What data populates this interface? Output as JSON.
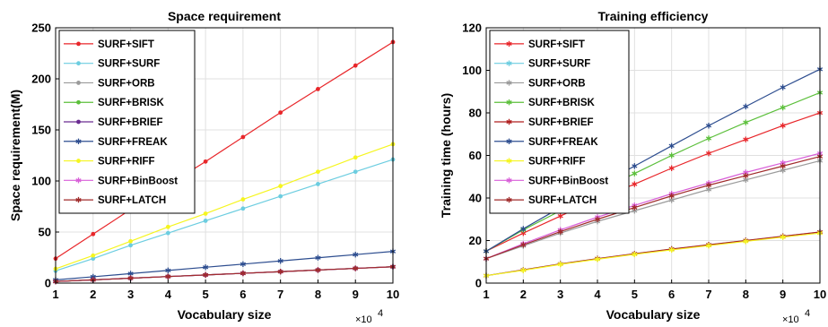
{
  "chart_data": [
    {
      "type": "line",
      "title": "Space requirement",
      "xlabel": "Vocabulary size",
      "ylabel": "Space requirement(M)",
      "x_multiplier_base": "×10",
      "x_multiplier_exp": "4",
      "x": [
        1,
        2,
        3,
        4,
        5,
        6,
        7,
        8,
        9,
        10
      ],
      "xlim": [
        1,
        10
      ],
      "ylim": [
        0,
        250
      ],
      "yticks": [
        0,
        50,
        100,
        150,
        200,
        250
      ],
      "grid": true,
      "legend": "top-left",
      "series": [
        {
          "name": "SURF+SIFT",
          "color": "#e8262a",
          "marker": "dot",
          "values": [
            24,
            48,
            72,
            96,
            119,
            143,
            167,
            190,
            213,
            236
          ]
        },
        {
          "name": "SURF+SURF",
          "color": "#6ccde0",
          "marker": "dot",
          "values": [
            12,
            24,
            37,
            49,
            61,
            73,
            85,
            97,
            109,
            121
          ]
        },
        {
          "name": "SURF+ORB",
          "color": "#9b9b9b",
          "marker": "dot",
          "values": [
            1.6,
            3.2,
            4.8,
            6.4,
            8,
            9.6,
            11.2,
            12.8,
            14.4,
            16
          ]
        },
        {
          "name": "SURF+BRISK",
          "color": "#5bbf3a",
          "marker": "dot",
          "values": [
            1.6,
            3.2,
            4.8,
            6.4,
            8,
            9.6,
            11.2,
            12.8,
            14.4,
            16
          ]
        },
        {
          "name": "SURF+BRIEF",
          "color": "#6a2c91",
          "marker": "dot",
          "values": [
            1.6,
            3.2,
            4.8,
            6.4,
            8,
            9.6,
            11.2,
            12.8,
            14.4,
            16
          ]
        },
        {
          "name": "SURF+FREAK",
          "color": "#2d4d8f",
          "marker": "star",
          "values": [
            3.2,
            6.2,
            9.3,
            12.4,
            15.5,
            18.6,
            21.7,
            24.8,
            27.9,
            31
          ]
        },
        {
          "name": "SURF+RIFF",
          "color": "#f5f520",
          "marker": "dot",
          "values": [
            14,
            27,
            41,
            55,
            68,
            82,
            95,
            109,
            123,
            136
          ]
        },
        {
          "name": "SURF+BinBoost",
          "color": "#d85ed8",
          "marker": "star",
          "values": [
            1.6,
            3.2,
            4.8,
            6.4,
            8,
            9.6,
            11.2,
            12.8,
            14.4,
            16
          ]
        },
        {
          "name": "SURF+LATCH",
          "color": "#a02b2b",
          "marker": "star",
          "values": [
            1.6,
            3.2,
            4.8,
            6.4,
            8,
            9.6,
            11.2,
            12.8,
            14.4,
            16
          ]
        }
      ]
    },
    {
      "type": "line",
      "title": "Training efficiency",
      "xlabel": "Vocabulary size",
      "ylabel": "Training time (hours)",
      "x_multiplier_base": "×10",
      "x_multiplier_exp": "4",
      "x": [
        1,
        2,
        3,
        4,
        5,
        6,
        7,
        8,
        9,
        10
      ],
      "xlim": [
        1,
        10
      ],
      "ylim": [
        0,
        120
      ],
      "yticks": [
        0,
        20,
        40,
        60,
        80,
        100,
        120
      ],
      "grid": true,
      "legend": "top-left",
      "series": [
        {
          "name": "SURF+SIFT",
          "color": "#e8262a",
          "marker": "star",
          "values": [
            15,
            23.5,
            31.5,
            39.5,
            46.5,
            54,
            61,
            67.5,
            74,
            80
          ]
        },
        {
          "name": "SURF+SURF",
          "color": "#6ccde0",
          "marker": "star",
          "values": [
            3.5,
            6.2,
            9,
            11.5,
            13.8,
            16,
            18,
            20,
            22,
            24
          ]
        },
        {
          "name": "SURF+ORB",
          "color": "#9b9b9b",
          "marker": "star",
          "values": [
            11.5,
            17.5,
            23.5,
            29,
            34,
            39,
            44,
            48.5,
            53,
            57.5
          ]
        },
        {
          "name": "SURF+BRISK",
          "color": "#5bbf3a",
          "marker": "star",
          "values": [
            15,
            25,
            34,
            43,
            51.5,
            60,
            68,
            75.5,
            82.5,
            89.5
          ]
        },
        {
          "name": "SURF+BRIEF",
          "color": "#b01e1e",
          "marker": "star",
          "values": [
            3.5,
            6.2,
            9,
            11.5,
            13.8,
            16,
            18,
            20,
            22,
            24
          ]
        },
        {
          "name": "SURF+FREAK",
          "color": "#2d4d8f",
          "marker": "star",
          "values": [
            15,
            25.5,
            35.5,
            45.5,
            55,
            64.5,
            74,
            83,
            92,
            100.5
          ]
        },
        {
          "name": "SURF+RIFF",
          "color": "#f5f520",
          "marker": "star",
          "values": [
            3.5,
            6,
            8.8,
            11.2,
            13.5,
            15.6,
            17.6,
            19.6,
            21.6,
            23.5
          ]
        },
        {
          "name": "SURF+BinBoost",
          "color": "#d85ed8",
          "marker": "star",
          "values": [
            11.5,
            18.5,
            25,
            31,
            36.5,
            42,
            47,
            52,
            56.5,
            61
          ]
        },
        {
          "name": "SURF+LATCH",
          "color": "#a02b2b",
          "marker": "star",
          "values": [
            11.5,
            18,
            24.2,
            30,
            35.5,
            41,
            46,
            50.5,
            55,
            59.5
          ]
        }
      ]
    }
  ]
}
